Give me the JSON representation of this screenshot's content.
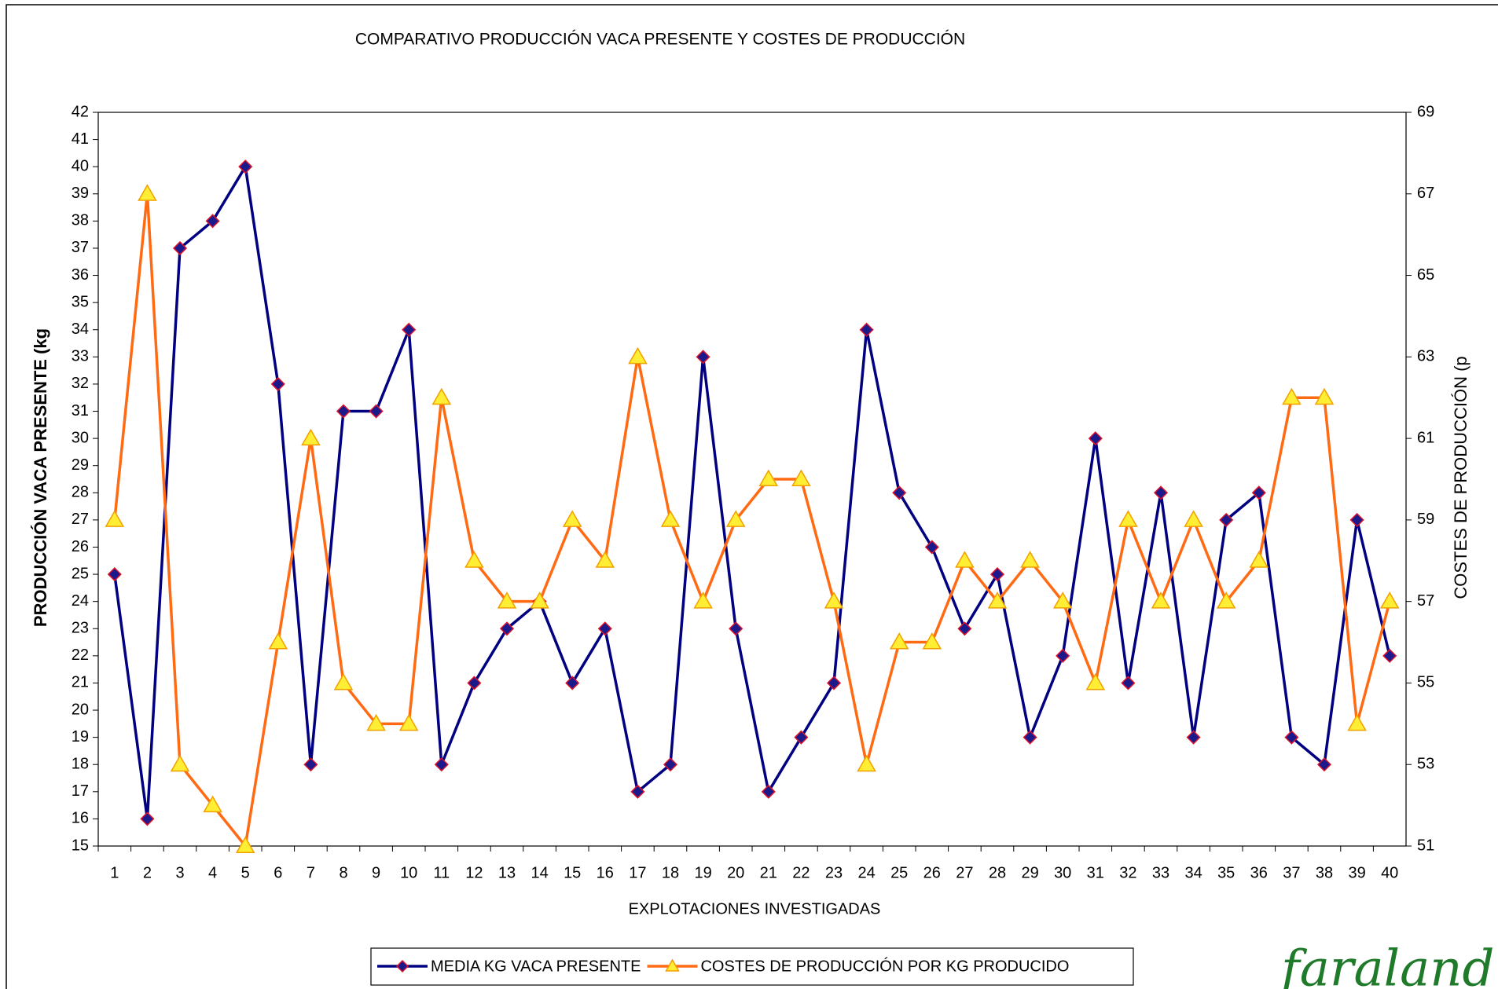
{
  "chart_data": {
    "type": "line",
    "title": "COMPARATIVO PRODUCCIÓN VACA PRESENTE Y COSTES DE PRODUCCIÓN",
    "x_label": "EXPLOTACIONES INVESTIGADAS",
    "y_label": "PRODUCCIÓN VACA PRESENTE (kg",
    "y2_label": "COSTES DE PRODUCCIÓN (p",
    "logo": "faraland",
    "categories": [
      "1",
      "2",
      "3",
      "4",
      "5",
      "6",
      "7",
      "8",
      "9",
      "10",
      "11",
      "12",
      "13",
      "14",
      "15",
      "16",
      "17",
      "18",
      "19",
      "20",
      "21",
      "22",
      "23",
      "24",
      "25",
      "26",
      "27",
      "28",
      "29",
      "30",
      "31",
      "32",
      "33",
      "34",
      "35",
      "36",
      "37",
      "38",
      "39",
      "40"
    ],
    "ylim": [
      15,
      42
    ],
    "yticks": [
      15,
      16,
      17,
      18,
      19,
      20,
      21,
      22,
      23,
      24,
      25,
      26,
      27,
      28,
      29,
      30,
      31,
      32,
      33,
      34,
      35,
      36,
      37,
      38,
      39,
      40,
      41,
      42
    ],
    "y2lim": [
      51,
      69
    ],
    "y2ticks": [
      51,
      53,
      55,
      57,
      59,
      61,
      63,
      65,
      67,
      69
    ],
    "grid": false,
    "legend": "bottom",
    "series": [
      {
        "name": "MEDIA KG VACA PRESENTE",
        "color": "#000080",
        "marker": "diamond",
        "marker_color": "#1a1a8c",
        "marker_edge": "#e0102a",
        "values": [
          25,
          16,
          37,
          38,
          40,
          32,
          18,
          31,
          31,
          34,
          18,
          21,
          23,
          24,
          21,
          23,
          17,
          18,
          33,
          23,
          17,
          19,
          21,
          34,
          28,
          26,
          23,
          25,
          19,
          22,
          30,
          21,
          28,
          19,
          27,
          28,
          19,
          18,
          27,
          22
        ]
      },
      {
        "name": "COSTES DE PRODUCCIÓN POR KG PRODUCIDO",
        "color": "#ff6a13",
        "axis": "y2",
        "marker": "triangle",
        "marker_color": "#ffee33",
        "marker_edge": "#f2a000",
        "values": [
          59,
          67,
          53,
          52,
          51,
          56,
          61,
          55,
          54,
          54,
          62,
          58,
          57,
          57,
          59,
          58,
          63,
          59,
          57,
          59,
          60,
          60,
          57,
          53,
          56,
          56,
          58,
          57,
          58,
          57,
          55,
          59,
          57,
          59,
          57,
          58,
          62,
          62,
          54,
          57
        ]
      }
    ]
  }
}
